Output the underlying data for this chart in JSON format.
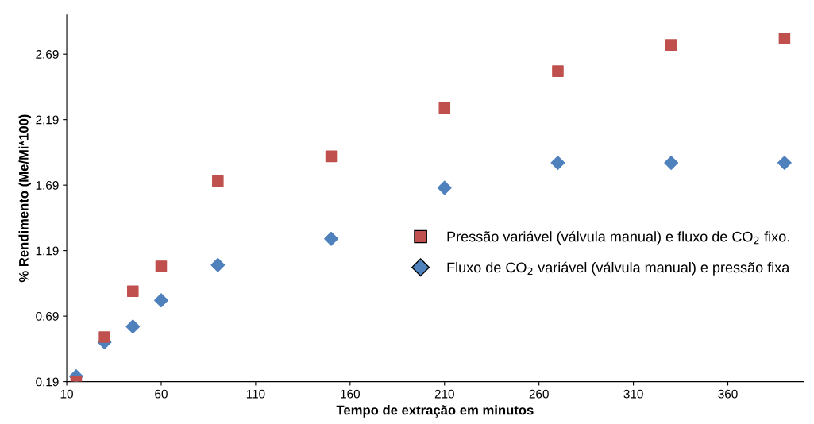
{
  "chart_data": {
    "type": "scatter",
    "xlabel": "Tempo de extração em minutos",
    "ylabel": "% Rendimento (Me/Mi*100)",
    "x": [
      15,
      30,
      45,
      60,
      90,
      150,
      210,
      270,
      330,
      390
    ],
    "series": [
      {
        "name": "Pressão variável (válvula manual) e fluxo de CO$_{2}$ fixo.",
        "color": "#c0504d",
        "marker": "square",
        "values": [
          0.19,
          0.53,
          0.88,
          1.07,
          1.72,
          1.91,
          2.28,
          2.56,
          2.76,
          2.81
        ]
      },
      {
        "name": "Fluxo de CO$_{2}$ variável (válvula manual) e pressão fixa",
        "color": "#4f81bd",
        "marker": "diamond",
        "values": [
          0.23,
          0.49,
          0.61,
          0.81,
          1.08,
          1.28,
          1.67,
          1.86,
          1.86,
          1.86
        ]
      }
    ],
    "xlim": [
      10,
      400
    ],
    "xticks": [
      10,
      60,
      110,
      160,
      210,
      260,
      310,
      360
    ],
    "ylim": [
      0.19,
      2.99
    ],
    "yticks": [
      {
        "value": 0.19,
        "label": "0,19"
      },
      {
        "value": 0.69,
        "label": "0,69"
      },
      {
        "value": 1.19,
        "label": "1,19"
      },
      {
        "value": 1.69,
        "label": "1,69"
      },
      {
        "value": 2.19,
        "label": "2,19"
      },
      {
        "value": 2.69,
        "label": "2,69"
      }
    ],
    "grid": false,
    "legend": "right"
  }
}
